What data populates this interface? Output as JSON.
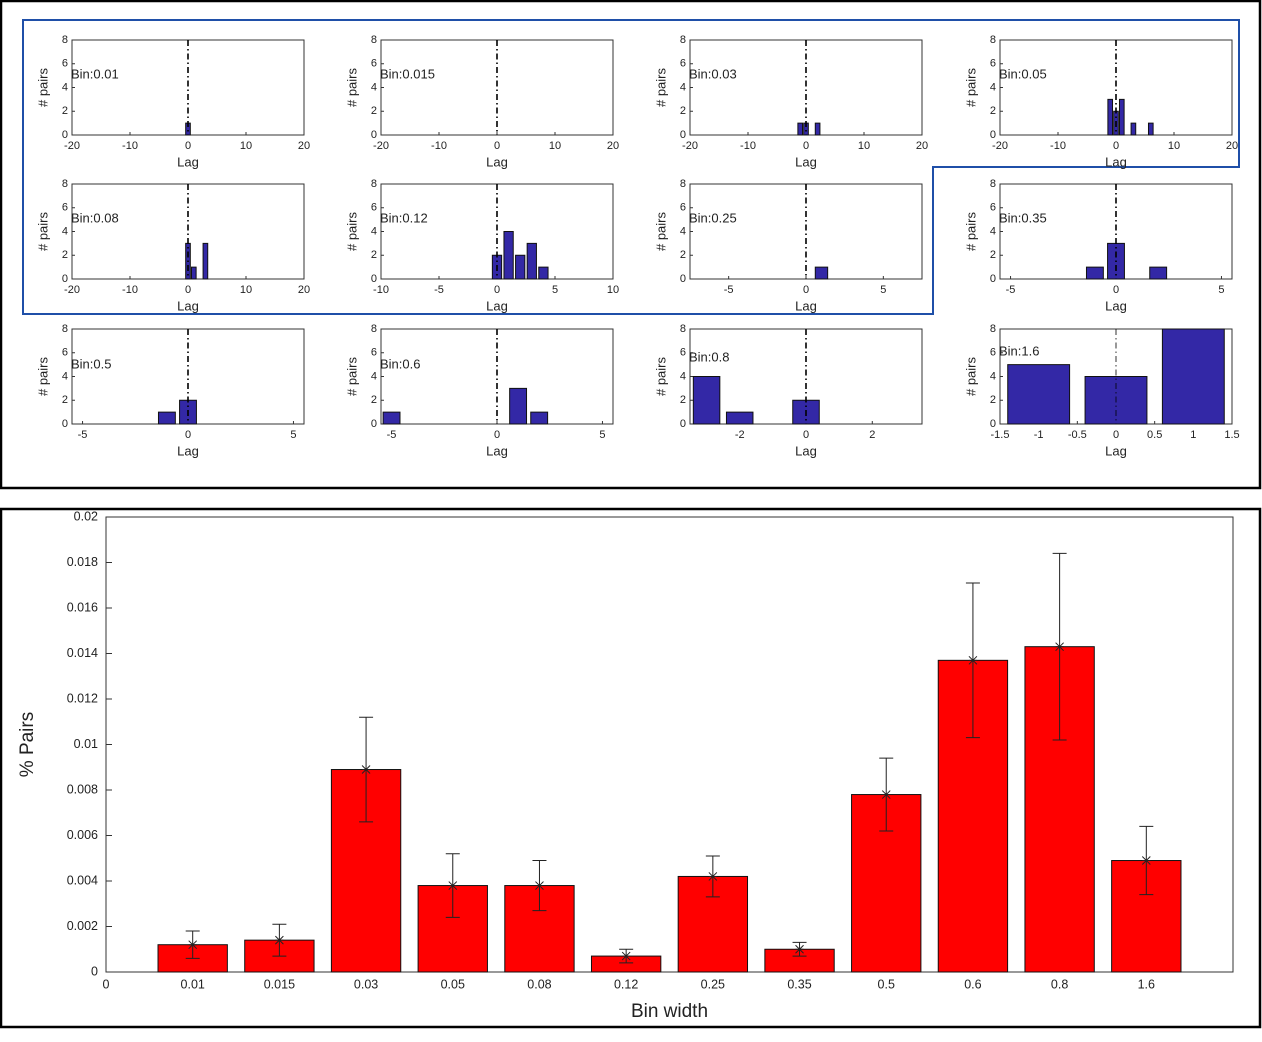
{
  "chart_data": [
    {
      "type": "bar",
      "annotation": "Bin:0.01",
      "x": [
        0
      ],
      "values": [
        1
      ],
      "color": "#3328a6",
      "xlim": [
        -20,
        20
      ],
      "xticks": [
        -20,
        -10,
        0,
        10,
        20
      ],
      "ylim": [
        0,
        8
      ],
      "yticks": [
        0,
        2,
        4,
        6,
        8
      ],
      "xlabel": "Lag",
      "ylabel": "# pairs",
      "vline": 0
    },
    {
      "type": "bar",
      "annotation": "Bin:0.015",
      "x": [],
      "values": [],
      "color": "#3328a6",
      "xlim": [
        -20,
        20
      ],
      "xticks": [
        -20,
        -10,
        0,
        10,
        20
      ],
      "ylim": [
        0,
        8
      ],
      "yticks": [
        0,
        2,
        4,
        6,
        8
      ],
      "xlabel": "Lag",
      "ylabel": "# pairs",
      "vline": 0
    },
    {
      "type": "bar",
      "annotation": "Bin:0.03",
      "x": [
        -1,
        0,
        2
      ],
      "values": [
        1,
        1,
        1
      ],
      "color": "#3328a6",
      "xlim": [
        -20,
        20
      ],
      "xticks": [
        -20,
        -10,
        0,
        10,
        20
      ],
      "ylim": [
        0,
        8
      ],
      "yticks": [
        0,
        2,
        4,
        6,
        8
      ],
      "xlabel": "Lag",
      "ylabel": "# pairs",
      "vline": 0
    },
    {
      "type": "bar",
      "annotation": "Bin:0.05",
      "x": [
        -1,
        0,
        1,
        3,
        6
      ],
      "values": [
        3,
        2,
        3,
        1,
        1
      ],
      "color": "#3328a6",
      "xlim": [
        -20,
        20
      ],
      "xticks": [
        -20,
        -10,
        0,
        10,
        20
      ],
      "ylim": [
        0,
        8
      ],
      "yticks": [
        0,
        2,
        4,
        6,
        8
      ],
      "xlabel": "Lag",
      "ylabel": "# pairs",
      "vline": 0
    },
    {
      "type": "bar",
      "annotation": "Bin:0.08",
      "x": [
        0,
        1,
        3
      ],
      "values": [
        3,
        1,
        3
      ],
      "color": "#3328a6",
      "xlim": [
        -20,
        20
      ],
      "xticks": [
        -20,
        -10,
        0,
        10,
        20
      ],
      "ylim": [
        0,
        8
      ],
      "yticks": [
        0,
        2,
        4,
        6,
        8
      ],
      "xlabel": "Lag",
      "ylabel": "# pairs",
      "vline": 0
    },
    {
      "type": "bar",
      "annotation": "Bin:0.12",
      "x": [
        0,
        1,
        2,
        3,
        4
      ],
      "values": [
        2,
        4,
        2,
        3,
        1
      ],
      "color": "#3328a6",
      "xlim": [
        -10,
        10
      ],
      "xticks": [
        -10,
        -5,
        0,
        5,
        10
      ],
      "ylim": [
        0,
        8
      ],
      "yticks": [
        0,
        2,
        4,
        6,
        8
      ],
      "xlabel": "Lag",
      "ylabel": "# pairs",
      "vline": 0
    },
    {
      "type": "bar",
      "annotation": "Bin:0.25",
      "x": [
        1
      ],
      "values": [
        1
      ],
      "color": "#3328a6",
      "xlim": [
        -7.5,
        7.5
      ],
      "xticks": [
        -5,
        0,
        5
      ],
      "ylim": [
        0,
        8
      ],
      "yticks": [
        0,
        2,
        4,
        6,
        8
      ],
      "xlabel": "Lag",
      "ylabel": "# pairs",
      "vline": 0
    },
    {
      "type": "bar",
      "annotation": "Bin:0.35",
      "x": [
        -1,
        0,
        2
      ],
      "values": [
        1,
        3,
        1
      ],
      "color": "#3328a6",
      "xlim": [
        -5.5,
        5.5
      ],
      "xticks": [
        -5,
        0,
        5
      ],
      "ylim": [
        0,
        8
      ],
      "yticks": [
        0,
        2,
        4,
        6,
        8
      ],
      "xlabel": "Lag",
      "ylabel": "# pairs",
      "vline": 0
    },
    {
      "type": "bar",
      "annotation": "Bin:0.5",
      "x": [
        -1,
        0
      ],
      "values": [
        1,
        2
      ],
      "color": "#3328a6",
      "xlim": [
        -5.5,
        5.5
      ],
      "xticks": [
        -5,
        0,
        5
      ],
      "ylim": [
        0,
        8
      ],
      "yticks": [
        0,
        2,
        4,
        6,
        8
      ],
      "xlabel": "Lag",
      "ylabel": "# pairs",
      "vline": 0
    },
    {
      "type": "bar",
      "annotation": "Bin:0.6",
      "x": [
        -5,
        1,
        2
      ],
      "values": [
        1,
        3,
        1
      ],
      "color": "#3328a6",
      "xlim": [
        -5.5,
        5.5
      ],
      "xticks": [
        -5,
        0,
        5
      ],
      "ylim": [
        0,
        8
      ],
      "yticks": [
        0,
        2,
        4,
        6,
        8
      ],
      "xlabel": "Lag",
      "ylabel": "# pairs",
      "vline": 0
    },
    {
      "type": "bar",
      "annotation": "Bin:0.8",
      "x": [
        -3,
        -2,
        0
      ],
      "values": [
        4,
        1,
        2
      ],
      "color": "#3328a6",
      "xlim": [
        -3.5,
        3.5
      ],
      "xticks": [
        -2,
        0,
        2
      ],
      "ylim": [
        0,
        8
      ],
      "yticks": [
        0,
        2,
        4,
        6,
        8
      ],
      "xlabel": "Lag",
      "ylabel": "# pairs",
      "vline": 0
    },
    {
      "type": "bar",
      "annotation": "Bin:1.6",
      "x": [
        -1,
        0,
        1
      ],
      "values": [
        5,
        4,
        8
      ],
      "color": "#3328a6",
      "xlim": [
        -1.5,
        1.5
      ],
      "xticks": [
        -1.5,
        -1,
        -0.5,
        0,
        0.5,
        1,
        1.5
      ],
      "ylim": [
        0,
        8
      ],
      "yticks": [
        0,
        2,
        4,
        6,
        8
      ],
      "xlabel": "Lag",
      "ylabel": "# pairs",
      "vline": 0
    },
    {
      "type": "bar",
      "x": [
        1,
        2,
        3,
        4,
        5,
        6,
        7,
        8,
        9,
        10,
        11,
        12
      ],
      "values": [
        0.0012,
        0.0014,
        0.0089,
        0.0038,
        0.0038,
        0.0007,
        0.0042,
        0.001,
        0.0078,
        0.0137,
        0.0143,
        0.0049
      ],
      "errors": [
        0.0006,
        0.0007,
        0.0023,
        0.0014,
        0.0011,
        0.0003,
        0.0009,
        0.0003,
        0.0016,
        0.0034,
        0.0041,
        0.0015
      ],
      "color": "#ff0000",
      "xlim": [
        0,
        13
      ],
      "xticks": [
        0,
        {
          "value": 1,
          "label": "0.01"
        },
        {
          "value": 2,
          "label": "0.015"
        },
        {
          "value": 3,
          "label": "0.03"
        },
        {
          "value": 4,
          "label": "0.05"
        },
        {
          "value": 5,
          "label": "0.08"
        },
        {
          "value": 6,
          "label": "0.12"
        },
        {
          "value": 7,
          "label": "0.25"
        },
        {
          "value": 8,
          "label": "0.35"
        },
        {
          "value": 9,
          "label": "0.5"
        },
        {
          "value": 10,
          "label": "0.6"
        },
        {
          "value": 11,
          "label": "0.8"
        },
        {
          "value": 12,
          "label": "1.6"
        }
      ],
      "ylim": [
        0,
        0.02
      ],
      "yticks": [
        0,
        0.002,
        0.004,
        0.006,
        0.008,
        0.01,
        0.012,
        0.014,
        0.016,
        0.018,
        0.02
      ],
      "xlabel": "Bin width",
      "ylabel": "% Pairs"
    }
  ]
}
